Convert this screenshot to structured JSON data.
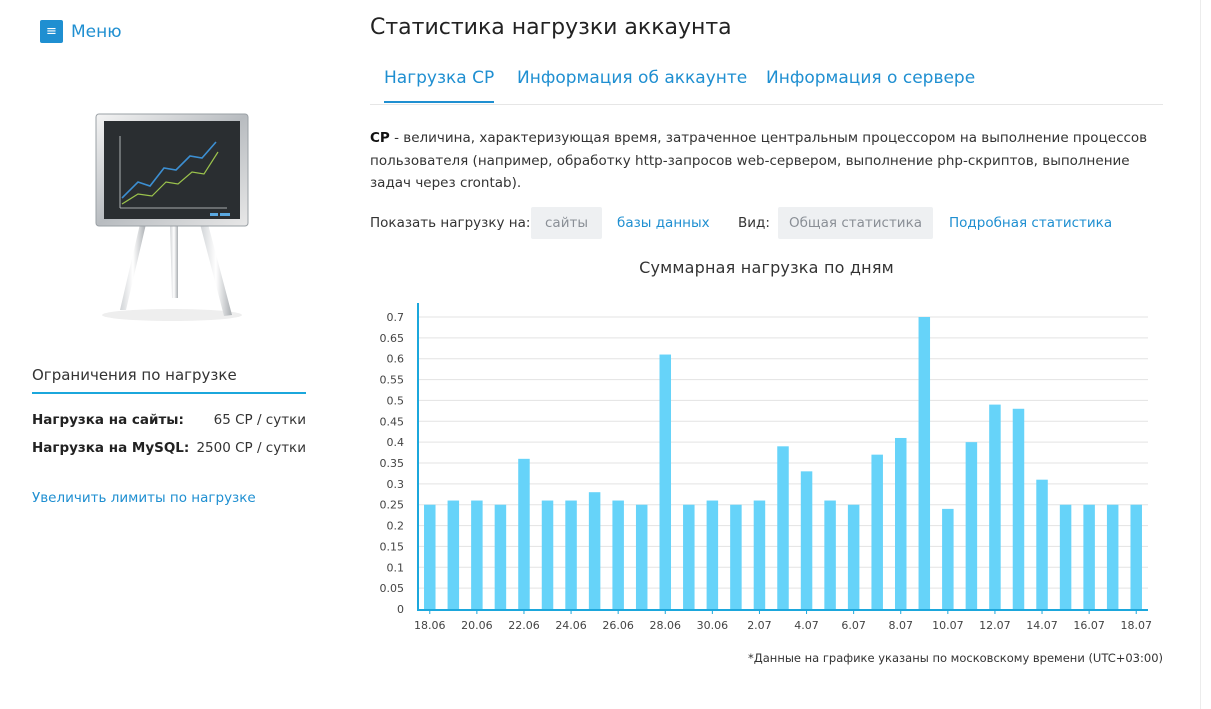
{
  "sidebar": {
    "menu_label": "Меню",
    "limits_title": "Ограничения по нагрузке",
    "limits": [
      {
        "label": "Нагрузка на сайты:",
        "value": "65 CP / сутки"
      },
      {
        "label": "Нагрузка на MySQL:",
        "value": "2500 CP / сутки"
      }
    ],
    "increase_link": "Увеличить лимиты по нагрузке"
  },
  "main": {
    "title": "Статистика нагрузки аккаунта",
    "tabs": [
      {
        "label": "Нагрузка CP",
        "active": true
      },
      {
        "label": "Информация об аккаунте",
        "active": false
      },
      {
        "label": "Информация о сервере",
        "active": false
      }
    ],
    "description": {
      "term": "CP",
      "text": " - величина, характеризующая время, затраченное центральным процессором на выполнение процессов пользователя (например, обработку http-запросов web-сервером, выполнение php-скриптов, выполнение задач через crontab)."
    },
    "filters": {
      "show_label": "Показать нагрузку на:",
      "sites": "сайты",
      "databases": "базы данных",
      "view_label": "Вид:",
      "general": "Общая статистика",
      "detailed": "Подробная статистика"
    },
    "footnote": "*Данные на графике указаны по московскому времени (UTC+03:00)"
  },
  "colors": {
    "accent": "#1f8fd1",
    "bar": "#66d3f9",
    "axis": "#1ba7dc",
    "grid": "#e3e3e3"
  },
  "chart_data": {
    "type": "bar",
    "title": "Суммарная нагрузка по дням",
    "xlabel": "",
    "ylabel": "",
    "ylim": [
      0,
      0.7
    ],
    "yticks": [
      0,
      0.05,
      0.1,
      0.15,
      0.2,
      0.25,
      0.3,
      0.35,
      0.4,
      0.45,
      0.5,
      0.55,
      0.6,
      0.65,
      0.7
    ],
    "ytick_labels": [
      "0",
      "0.05",
      "0.1",
      "0.15",
      "0.2",
      "0.25",
      "0.3",
      "0.35",
      "0.4",
      "0.45",
      "0.5",
      "0.55",
      "0.6",
      "0.65",
      "0.7"
    ],
    "categories": [
      "18.06",
      "19.06",
      "20.06",
      "21.06",
      "22.06",
      "23.06",
      "24.06",
      "25.06",
      "26.06",
      "27.06",
      "28.06",
      "29.06",
      "30.06",
      "1.07",
      "2.07",
      "3.07",
      "4.07",
      "5.07",
      "6.07",
      "7.07",
      "8.07",
      "9.07",
      "10.07",
      "11.07",
      "12.07",
      "13.07",
      "14.07",
      "15.07",
      "16.07",
      "17.07",
      "18.07"
    ],
    "xtick_labels": [
      "18.06",
      "20.06",
      "22.06",
      "24.06",
      "26.06",
      "28.06",
      "30.06",
      "2.07",
      "4.07",
      "6.07",
      "8.07",
      "10.07",
      "12.07",
      "14.07",
      "16.07",
      "18.07"
    ],
    "values": [
      0.25,
      0.26,
      0.26,
      0.25,
      0.36,
      0.26,
      0.26,
      0.28,
      0.26,
      0.25,
      0.61,
      0.25,
      0.26,
      0.25,
      0.26,
      0.39,
      0.33,
      0.26,
      0.25,
      0.37,
      0.41,
      0.7,
      0.24,
      0.4,
      0.49,
      0.48,
      0.31,
      0.25,
      0.25,
      0.25,
      0.25
    ],
    "grid": true,
    "legend": "none"
  }
}
